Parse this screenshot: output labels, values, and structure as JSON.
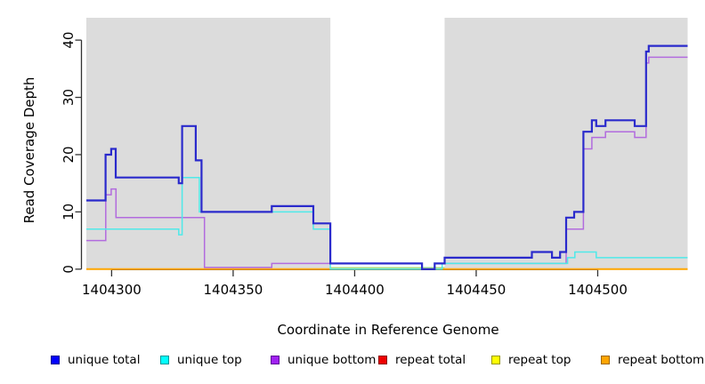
{
  "figure": {
    "x_axis_title": "Coordinate in Reference Genome",
    "y_axis_title": "Read Coverage Depth"
  },
  "chart_data": {
    "type": "line",
    "step": "after",
    "title": "",
    "xlabel": "Coordinate in Reference Genome",
    "ylabel": "Read Coverage Depth",
    "xlim": [
      1404289.6,
      1404537
    ],
    "ylim": [
      0,
      43.9
    ],
    "grid": false,
    "legend_position": "bottom",
    "xticks": [
      1404300,
      1404350,
      1404400,
      1404450,
      1404500
    ],
    "xtick_labels": [
      "1404300",
      "1404350",
      "1404400",
      "1404450",
      "1404500"
    ],
    "yticks": [
      0,
      10,
      20,
      30,
      40
    ],
    "ytick_labels": [
      "0",
      "10",
      "20",
      "30",
      "40"
    ],
    "shaded_regions": [
      {
        "name": "left-gray-region",
        "x0": 1404289.6,
        "x1": 1404390,
        "color": "#DCDCDC"
      },
      {
        "name": "right-gray-region",
        "x0": 1404437,
        "x1": 1404537,
        "color": "#DCDCDC"
      }
    ],
    "white_gap_region": {
      "x0": 1404390,
      "x1": 1404437
    },
    "series": [
      {
        "name": "repeat total",
        "color": "#EE0000",
        "width": 1.4,
        "points": [
          [
            1404289.6,
            0
          ],
          [
            1404537,
            0
          ]
        ]
      },
      {
        "name": "repeat top",
        "color": "#F5F500",
        "width": 1.4,
        "points": [
          [
            1404289.6,
            0
          ],
          [
            1404537,
            0
          ]
        ]
      },
      {
        "name": "gap baseline",
        "color": "#9FE8A0",
        "width": 1.6,
        "points": [
          [
            1404390,
            0.25
          ],
          [
            1404437,
            0.25
          ]
        ]
      },
      {
        "name": "repeat bottom",
        "color": "#FFA500",
        "width": 2,
        "points": [
          [
            1404289.6,
            0
          ],
          [
            1404537,
            0
          ]
        ]
      },
      {
        "name": "unique bottom",
        "color": "#B26BDE",
        "width": 1.5,
        "points": [
          [
            1404289.6,
            5
          ],
          [
            1404297.6,
            13
          ],
          [
            1404299.8,
            14
          ],
          [
            1404301.8,
            9
          ],
          [
            1404338.2,
            0.3
          ],
          [
            1404365.9,
            1
          ],
          [
            1404427.7,
            0
          ],
          [
            1404432.9,
            1
          ],
          [
            1404487.0,
            7
          ],
          [
            1404494.1,
            21
          ],
          [
            1404497.6,
            23
          ],
          [
            1404503.2,
            24
          ],
          [
            1404515.2,
            23
          ],
          [
            1404519.9,
            36
          ],
          [
            1404521.0,
            37
          ],
          [
            1404537,
            37
          ]
        ]
      },
      {
        "name": "unique top",
        "color": "#4FE9E9",
        "width": 1.5,
        "points": [
          [
            1404289.6,
            7
          ],
          [
            1404327.6,
            6
          ],
          [
            1404329.0,
            16
          ],
          [
            1404336.1,
            10
          ],
          [
            1404383.0,
            7
          ],
          [
            1404390.0,
            0
          ],
          [
            1404436.0,
            1
          ],
          [
            1404487.6,
            2
          ],
          [
            1404490.6,
            3
          ],
          [
            1404499.4,
            2
          ],
          [
            1404537,
            2
          ]
        ]
      },
      {
        "name": "unique total",
        "color": "#2A2ACC",
        "width": 2.2,
        "points": [
          [
            1404289.6,
            12
          ],
          [
            1404297.5,
            20
          ],
          [
            1404299.8,
            21
          ],
          [
            1404301.7,
            16
          ],
          [
            1404327.6,
            15
          ],
          [
            1404329.0,
            25
          ],
          [
            1404334.6,
            19
          ],
          [
            1404337.0,
            10
          ],
          [
            1404365.9,
            11
          ],
          [
            1404383.0,
            8
          ],
          [
            1404390.0,
            1
          ],
          [
            1404427.7,
            0
          ],
          [
            1404432.9,
            1
          ],
          [
            1404437.0,
            2
          ],
          [
            1404472.9,
            3
          ],
          [
            1404481.2,
            2
          ],
          [
            1404484.5,
            3
          ],
          [
            1404487.0,
            9
          ],
          [
            1404490.3,
            10
          ],
          [
            1404494.1,
            24
          ],
          [
            1404497.6,
            26
          ],
          [
            1404499.4,
            25
          ],
          [
            1404503.2,
            26
          ],
          [
            1404515.2,
            25
          ],
          [
            1404519.9,
            38
          ],
          [
            1404521.0,
            39
          ],
          [
            1404537,
            39
          ]
        ]
      }
    ],
    "legend": {
      "items": [
        {
          "label": "unique total",
          "fill": "#0000FF",
          "border": "#000090"
        },
        {
          "label": "unique top",
          "fill": "#00FFFF",
          "border": "#009898"
        },
        {
          "label": "unique bottom",
          "fill": "#A020F0",
          "border": "#5E0A96"
        },
        {
          "label": "repeat total",
          "fill": "#EE0000",
          "border": "#8F0000"
        },
        {
          "label": "repeat top",
          "fill": "#FFFF00",
          "border": "#989800"
        },
        {
          "label": "repeat bottom",
          "fill": "#FFA500",
          "border": "#9E6700"
        }
      ]
    },
    "axis_color": "#333333"
  }
}
